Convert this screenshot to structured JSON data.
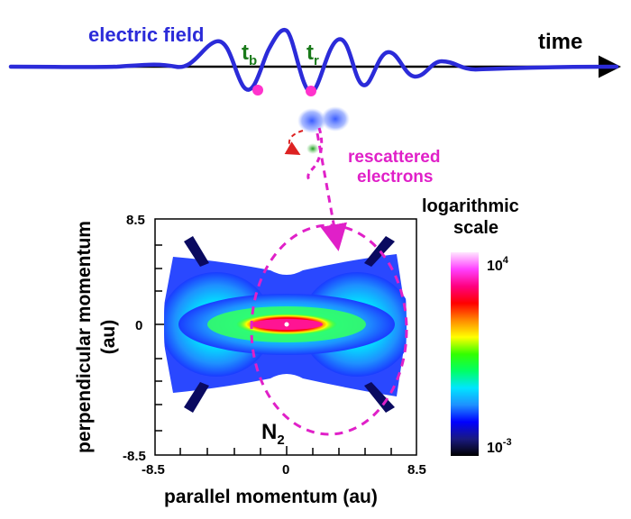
{
  "pulse": {
    "field_label": "electric field",
    "time_label": "time",
    "birth_label_main": "t",
    "birth_label_sub": "b",
    "return_label_main": "t",
    "return_label_sub": "r",
    "field_color": "#2b2bd9",
    "marker_color": "#ff33cc",
    "time_label_color": "#1a7a1a"
  },
  "electron": {
    "label_line1": "rescattered",
    "label_line2": "electrons",
    "color": "#e020c8"
  },
  "momentum_map": {
    "molecule_main": "N",
    "molecule_sub": "2",
    "xlabel": "parallel momentum (au)",
    "ylabel_line1": "perpendicular momentum",
    "ylabel_line2": "(au)",
    "x_ticks": [
      "-8.5",
      "0",
      "8.5"
    ],
    "y_ticks": [
      "8.5",
      "0",
      "-8.5"
    ],
    "xlim": [
      -8.5,
      8.5
    ],
    "ylim": [
      -8.5,
      8.5
    ]
  },
  "colorbar": {
    "title_line1": "logarithmic",
    "title_line2": "scale",
    "max_main": "10",
    "max_exp": "4",
    "min_main": "10",
    "min_exp": "-3",
    "colors": [
      "#000000",
      "#1a1a80",
      "#0000ff",
      "#1e90ff",
      "#00e5ff",
      "#00ff66",
      "#33ff00",
      "#ffff00",
      "#ff8800",
      "#ff0000",
      "#ff0080",
      "#ff40ff",
      "#ffe6ff"
    ]
  }
}
